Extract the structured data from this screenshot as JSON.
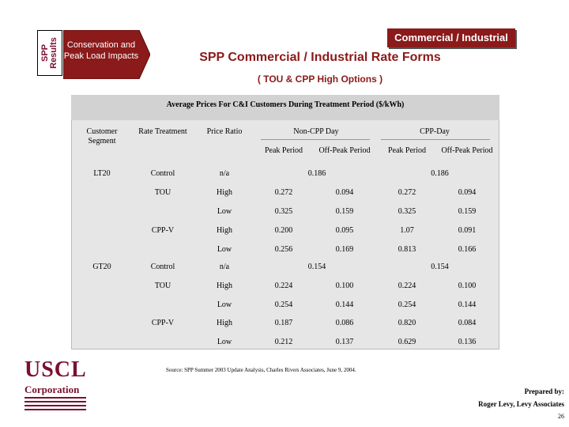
{
  "header": {
    "side_tab": [
      "SPP",
      "Results"
    ],
    "arrow_label": "Conservation and Peak Load Impacts",
    "badge": "Commercial / Industrial",
    "title": "SPP Commercial / Industrial Rate Forms",
    "subtitle": "( TOU & CPP High Options )"
  },
  "table": {
    "caption": "Average Prices For C&I Customers During Treatment Period ($/kWh)",
    "headers": {
      "segment": "Customer Segment",
      "treatment": "Rate Treatment",
      "ratio": "Price Ratio",
      "noncpp": "Non-CPP Day",
      "cpp": "CPP-Day",
      "peak": "Peak Period",
      "offpeak": "Off-Peak Period"
    },
    "rows": [
      {
        "segment": "LT20",
        "treatment": "Control",
        "ratio": "n/a",
        "noncpp_merged": "0.186",
        "cpp_merged": "0.186"
      },
      {
        "segment": "",
        "treatment": "TOU",
        "ratio": "High",
        "n_peak": "0.272",
        "n_off": "0.094",
        "c_peak": "0.272",
        "c_off": "0.094"
      },
      {
        "segment": "",
        "treatment": "",
        "ratio": "Low",
        "n_peak": "0.325",
        "n_off": "0.159",
        "c_peak": "0.325",
        "c_off": "0.159"
      },
      {
        "segment": "",
        "treatment": "CPP-V",
        "ratio": "High",
        "n_peak": "0.200",
        "n_off": "0.095",
        "c_peak": "1.07",
        "c_off": "0.091"
      },
      {
        "segment": "",
        "treatment": "",
        "ratio": "Low",
        "n_peak": "0.256",
        "n_off": "0.169",
        "c_peak": "0.813",
        "c_off": "0.166"
      },
      {
        "segment": "GT20",
        "treatment": "Control",
        "ratio": "n/a",
        "noncpp_merged": "0.154",
        "cpp_merged": "0.154"
      },
      {
        "segment": "",
        "treatment": "TOU",
        "ratio": "High",
        "n_peak": "0.224",
        "n_off": "0.100",
        "c_peak": "0.224",
        "c_off": "0.100"
      },
      {
        "segment": "",
        "treatment": "",
        "ratio": "Low",
        "n_peak": "0.254",
        "n_off": "0.144",
        "c_peak": "0.254",
        "c_off": "0.144"
      },
      {
        "segment": "",
        "treatment": "CPP-V",
        "ratio": "High",
        "n_peak": "0.187",
        "n_off": "0.086",
        "c_peak": "0.820",
        "c_off": "0.084"
      },
      {
        "segment": "",
        "treatment": "",
        "ratio": "Low",
        "n_peak": "0.212",
        "n_off": "0.137",
        "c_peak": "0.629",
        "c_off": "0.136"
      }
    ],
    "source": "Source:   SPP Summer 2003 Update Analysis, Charles Rivers Associates, June 9, 2004."
  },
  "footer": {
    "logo_word": "USCL",
    "logo_corp": "Corporation",
    "prepared_by": "Prepared by:",
    "author": "Roger Levy, Levy Associates",
    "page": "26"
  },
  "colors": {
    "brand": "#7a1030",
    "accent": "#8b1a1a",
    "panel": "#e6e6e6"
  }
}
